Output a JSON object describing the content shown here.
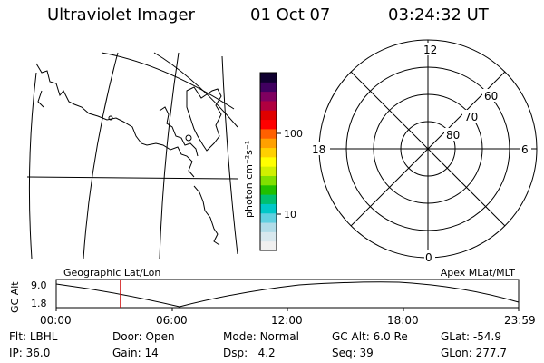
{
  "header": {
    "title": "Ultraviolet Imager",
    "date": "01 Oct 07",
    "time": "03:24:32 UT"
  },
  "colorbar": {
    "unit_label": "photon cm⁻²s⁻¹",
    "tick_labels": [
      "100",
      "10"
    ],
    "colors": [
      "#f0f0f0",
      "#d8e8ee",
      "#b0dce8",
      "#60d0e0",
      "#00c8c8",
      "#00c070",
      "#20c000",
      "#80e000",
      "#d0f000",
      "#ffff00",
      "#ffd000",
      "#ffa000",
      "#ff6000",
      "#ff0000",
      "#e00000",
      "#b00040",
      "#800060",
      "#400060",
      "#100030"
    ]
  },
  "polar_plot": {
    "mlt_labels": {
      "top": "12",
      "right": "6",
      "bottom": "0",
      "left": "18"
    },
    "lat_labels": [
      "60",
      "70",
      "80"
    ]
  },
  "timeline": {
    "left_title": "Geographic Lat/Lon",
    "right_title": "Apex MLat/MLT",
    "y_axis_label": "GC Alt",
    "y_ticks": [
      "9.0",
      "1.8"
    ],
    "x_ticks": [
      "00:00",
      "06:00",
      "12:00",
      "18:00",
      "23:59"
    ],
    "cursor_color": "#cc0000"
  },
  "status": {
    "row1": [
      {
        "key": "Flt:",
        "value": "LBHL"
      },
      {
        "key": "Door:",
        "value": "Open"
      },
      {
        "key": "Mode:",
        "value": "Normal"
      },
      {
        "key": "GC Alt:",
        "value": "6.0 Re"
      },
      {
        "key": "GLat:",
        "value": "-54.9"
      }
    ],
    "row2": [
      {
        "key": "IP:",
        "value": "36.0"
      },
      {
        "key": "Gain:",
        "value": "14"
      },
      {
        "key": "Dsp:",
        "value": "4.2"
      },
      {
        "key": "Seq:",
        "value": "39"
      },
      {
        "key": "GLon:",
        "value": "277.7"
      }
    ]
  }
}
